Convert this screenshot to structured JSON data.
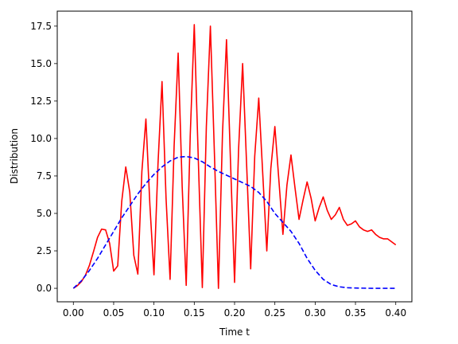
{
  "chart_data": {
    "type": "line",
    "title": "",
    "xlabel": "Time t",
    "ylabel": "Distribution",
    "xlim": [
      -0.02,
      0.42
    ],
    "ylim": [
      -0.9,
      18.5
    ],
    "xticks": [
      0.0,
      0.05,
      0.1,
      0.15,
      0.2,
      0.25,
      0.3,
      0.35,
      0.4
    ],
    "xtick_labels": [
      "0.00",
      "0.05",
      "0.10",
      "0.15",
      "0.20",
      "0.25",
      "0.30",
      "0.35",
      "0.40"
    ],
    "yticks": [
      0.0,
      2.5,
      5.0,
      7.5,
      10.0,
      12.5,
      15.0,
      17.5
    ],
    "ytick_labels": [
      "0.0",
      "2.5",
      "5.0",
      "7.5",
      "10.0",
      "12.5",
      "15.0",
      "17.5"
    ],
    "grid": false,
    "legend": "none",
    "series": [
      {
        "color": "#ff0000",
        "linestyle": "solid",
        "x": [
          0.0,
          0.005,
          0.01,
          0.015,
          0.02,
          0.025,
          0.03,
          0.035,
          0.04,
          0.045,
          0.05,
          0.055,
          0.06,
          0.065,
          0.07,
          0.075,
          0.08,
          0.085,
          0.09,
          0.095,
          0.1,
          0.105,
          0.11,
          0.115,
          0.12,
          0.125,
          0.13,
          0.135,
          0.14,
          0.145,
          0.15,
          0.155,
          0.16,
          0.165,
          0.17,
          0.175,
          0.18,
          0.185,
          0.19,
          0.195,
          0.2,
          0.205,
          0.21,
          0.215,
          0.22,
          0.225,
          0.23,
          0.235,
          0.24,
          0.245,
          0.25,
          0.255,
          0.26,
          0.265,
          0.27,
          0.275,
          0.28,
          0.285,
          0.29,
          0.295,
          0.3,
          0.305,
          0.31,
          0.315,
          0.32,
          0.325,
          0.33,
          0.335,
          0.34,
          0.345,
          0.35,
          0.355,
          0.36,
          0.365,
          0.37,
          0.375,
          0.38,
          0.385,
          0.39,
          0.395,
          0.4
        ],
        "y": [
          0.0,
          0.18,
          0.45,
          0.88,
          1.55,
          2.45,
          3.4,
          3.95,
          3.9,
          3.0,
          1.15,
          1.5,
          5.8,
          8.1,
          6.4,
          2.2,
          0.95,
          7.8,
          11.3,
          5.5,
          0.9,
          8.3,
          13.8,
          6.0,
          0.6,
          9.5,
          15.7,
          6.8,
          0.2,
          10.2,
          17.6,
          8.6,
          0.05,
          10.8,
          17.5,
          9.0,
          0.0,
          10.3,
          16.6,
          8.4,
          0.4,
          9.3,
          15.0,
          8.2,
          1.3,
          8.8,
          12.7,
          7.6,
          2.5,
          8.0,
          10.8,
          7.2,
          3.6,
          6.9,
          8.9,
          6.7,
          4.6,
          5.9,
          7.1,
          6.0,
          4.5,
          5.4,
          6.1,
          5.2,
          4.6,
          4.9,
          5.4,
          4.6,
          4.2,
          4.3,
          4.5,
          4.1,
          3.9,
          3.8,
          3.9,
          3.6,
          3.4,
          3.3,
          3.3,
          3.1,
          2.9
        ]
      },
      {
        "color": "#0000ff",
        "linestyle": "dashed",
        "x": [
          0.0,
          0.01,
          0.02,
          0.03,
          0.04,
          0.05,
          0.06,
          0.07,
          0.08,
          0.09,
          0.1,
          0.11,
          0.12,
          0.13,
          0.14,
          0.15,
          0.16,
          0.17,
          0.18,
          0.19,
          0.2,
          0.21,
          0.22,
          0.23,
          0.24,
          0.25,
          0.26,
          0.27,
          0.28,
          0.29,
          0.3,
          0.31,
          0.32,
          0.33,
          0.34,
          0.35,
          0.36,
          0.37,
          0.38,
          0.39,
          0.4
        ],
        "y": [
          0.0,
          0.5,
          1.2,
          2.0,
          2.9,
          3.8,
          4.7,
          5.5,
          6.3,
          7.0,
          7.6,
          8.1,
          8.5,
          8.75,
          8.8,
          8.7,
          8.45,
          8.1,
          7.8,
          7.55,
          7.3,
          7.05,
          6.8,
          6.4,
          5.8,
          5.0,
          4.4,
          3.8,
          3.0,
          2.0,
          1.2,
          0.6,
          0.25,
          0.1,
          0.04,
          0.02,
          0.01,
          0.0,
          0.0,
          0.0,
          0.0
        ]
      }
    ]
  }
}
